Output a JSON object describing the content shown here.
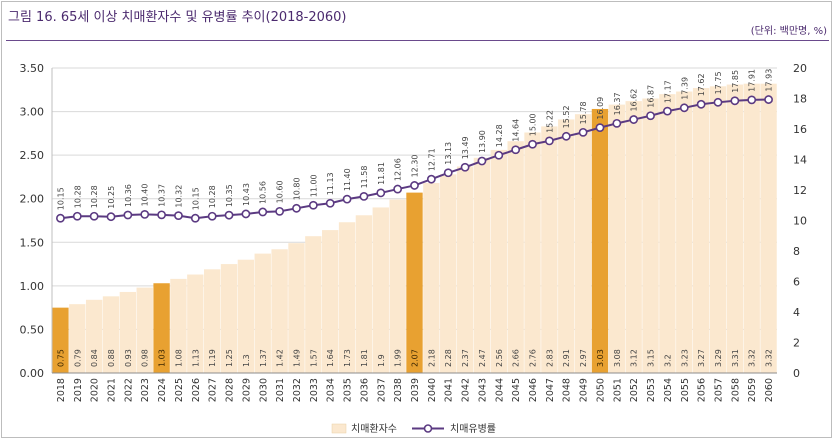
{
  "title": "그림 16. 65세 이상 치매환자수 및 유병률 추이(2018-2060)",
  "unit_note": "(단위: 백만명, %)",
  "colors": {
    "bar": "#fbe8cf",
    "bar_highlight": "#e8a131",
    "line": "#5b3a82",
    "marker_fill": "#ffffff",
    "grid": "#d9d9d9",
    "title": "#4b2a6e"
  },
  "chart_data": {
    "type": "bar+line",
    "categories": [
      "2018",
      "2019",
      "2020",
      "2021",
      "2022",
      "2023",
      "2024",
      "2025",
      "2026",
      "2027",
      "2028",
      "2029",
      "2030",
      "2031",
      "2032",
      "2033",
      "2034",
      "2035",
      "2036",
      "2037",
      "2038",
      "2039",
      "2040",
      "2041",
      "2042",
      "2043",
      "2044",
      "2045",
      "2046",
      "2047",
      "2048",
      "2049",
      "2050",
      "2051",
      "2052",
      "2053",
      "2054",
      "2055",
      "2056",
      "2057",
      "2058",
      "2059",
      "2060"
    ],
    "highlight": [
      "2018",
      "2024",
      "2039",
      "2050"
    ],
    "series": [
      {
        "name": "치매환자수",
        "type": "bar",
        "axis": "left",
        "values": [
          0.75,
          0.79,
          0.84,
          0.88,
          0.93,
          0.98,
          1.03,
          1.08,
          1.13,
          1.19,
          1.25,
          1.3,
          1.37,
          1.42,
          1.49,
          1.57,
          1.64,
          1.73,
          1.81,
          1.9,
          1.99,
          2.07,
          2.18,
          2.28,
          2.37,
          2.47,
          2.56,
          2.66,
          2.76,
          2.83,
          2.91,
          2.97,
          3.03,
          3.08,
          3.12,
          3.15,
          3.2,
          3.23,
          3.27,
          3.29,
          3.31,
          3.32,
          3.32
        ],
        "labels": [
          "0.75",
          "0.79",
          "0.84",
          "0.88",
          "0.93",
          "0.98",
          "1.03",
          "1.08",
          "1.13",
          "1.19",
          "1.25",
          "1.3",
          "1.37",
          "1.42",
          "1.49",
          "1.57",
          "1.64",
          "1.73",
          "1.81",
          "1.9",
          "1.99",
          "2.07",
          "2.18",
          "2.28",
          "2.37",
          "2.47",
          "2.56",
          "2.66",
          "2.76",
          "2.83",
          "2.91",
          "2.97",
          "3.03",
          "3.08",
          "3.12",
          "3.15",
          "3.2",
          "3.23",
          "3.27",
          "3.29",
          "3.31",
          "3.32",
          "3.32"
        ]
      },
      {
        "name": "치매유병률",
        "type": "line",
        "axis": "right",
        "values": [
          10.15,
          10.28,
          10.28,
          10.25,
          10.36,
          10.4,
          10.37,
          10.32,
          10.15,
          10.28,
          10.35,
          10.43,
          10.56,
          10.6,
          10.8,
          11.0,
          11.13,
          11.4,
          11.58,
          11.81,
          12.06,
          12.3,
          12.71,
          13.13,
          13.49,
          13.9,
          14.28,
          14.64,
          15.0,
          15.22,
          15.52,
          15.78,
          16.09,
          16.37,
          16.62,
          16.87,
          17.17,
          17.39,
          17.62,
          17.75,
          17.85,
          17.91,
          17.93
        ],
        "labels": [
          "10.15",
          "10.28",
          "10.28",
          "10.25",
          "10.36",
          "10.40",
          "10.37",
          "10.32",
          "10.15",
          "10.28",
          "10.35",
          "10.43",
          "10.56",
          "10.60",
          "10.80",
          "11.00",
          "11.13",
          "11.40",
          "11.58",
          "11.81",
          "12.06",
          "12.30",
          "12.71",
          "13.13",
          "13.49",
          "13.90",
          "14.28",
          "14.64",
          "15.00",
          "15.22",
          "15.52",
          "15.78",
          "16.09",
          "16.37",
          "16.62",
          "16.87",
          "17.17",
          "17.39",
          "17.62",
          "17.75",
          "17.85",
          "17.91",
          "17.93"
        ]
      }
    ],
    "y_left": {
      "min": 0,
      "max": 3.5,
      "ticks": [
        "0.00",
        "0.50",
        "1.00",
        "1.50",
        "2.00",
        "2.50",
        "3.00",
        "3.50"
      ]
    },
    "y_right": {
      "min": 0,
      "max": 20,
      "ticks": [
        "0",
        "2",
        "4",
        "6",
        "8",
        "10",
        "12",
        "14",
        "16",
        "18",
        "20"
      ]
    },
    "legend": [
      "치매환자수",
      "치매유병률"
    ],
    "legend_position": "bottom-center"
  }
}
